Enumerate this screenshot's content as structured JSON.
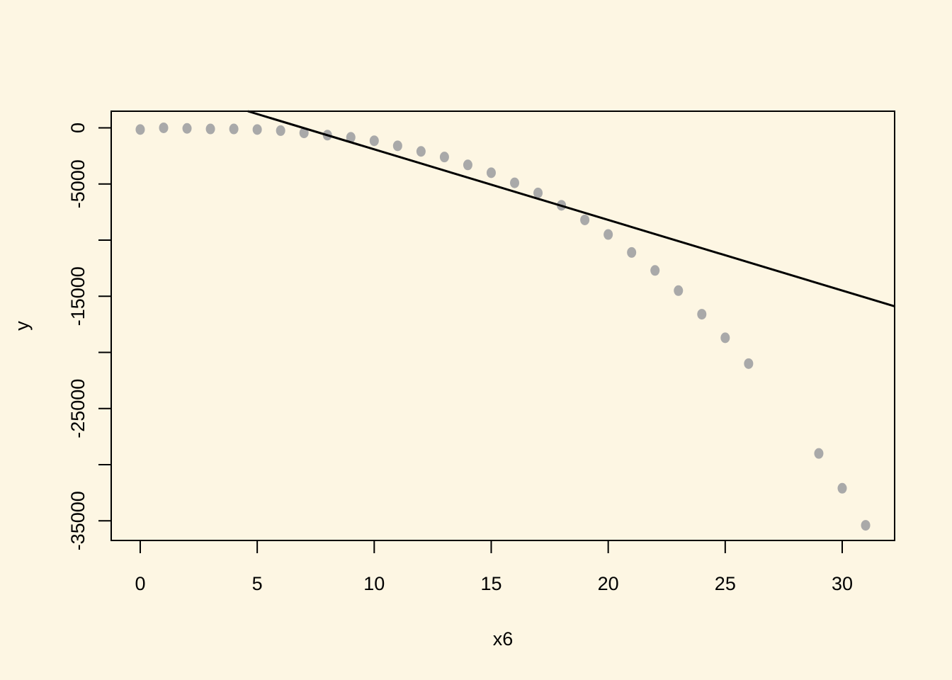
{
  "chart_data": {
    "type": "scatter",
    "title": "",
    "xlabel": "x6",
    "ylabel": "y",
    "xlim": [
      -1.24,
      32.24
    ],
    "ylim": [
      -36750,
      1480
    ],
    "grid": false,
    "x_ticks": [
      0,
      5,
      10,
      15,
      20,
      25,
      30
    ],
    "y_ticks": [
      0,
      -5000,
      -10000,
      -15000,
      -20000,
      -25000,
      -30000,
      -35000
    ],
    "y_tick_labels": [
      "0",
      "-5000",
      "",
      "-15000",
      "",
      "-25000",
      "",
      "-35000"
    ],
    "point_color": "#a9a9a9",
    "line_color": "#000000",
    "series": [
      {
        "type": "scatter",
        "x": [
          0,
          1,
          2,
          3,
          4,
          5,
          6,
          7,
          8,
          9,
          10,
          11,
          12,
          13,
          14,
          15,
          16,
          17,
          18,
          19,
          20,
          21,
          22,
          23,
          24,
          25,
          26,
          29,
          30,
          31
        ],
        "y": [
          -150,
          0,
          -50,
          -100,
          -100,
          -150,
          -250,
          -450,
          -650,
          -850,
          -1150,
          -1600,
          -2100,
          -2600,
          -3300,
          -4000,
          -4900,
          -5800,
          -6900,
          -8200,
          -9500,
          -11100,
          -12700,
          -14500,
          -16600,
          -18700,
          -21000,
          -29000,
          -32100,
          -35400
        ]
      },
      {
        "type": "line",
        "x": [
          4.6,
          32.24
        ],
        "y": [
          1480,
          -15900
        ]
      }
    ]
  }
}
